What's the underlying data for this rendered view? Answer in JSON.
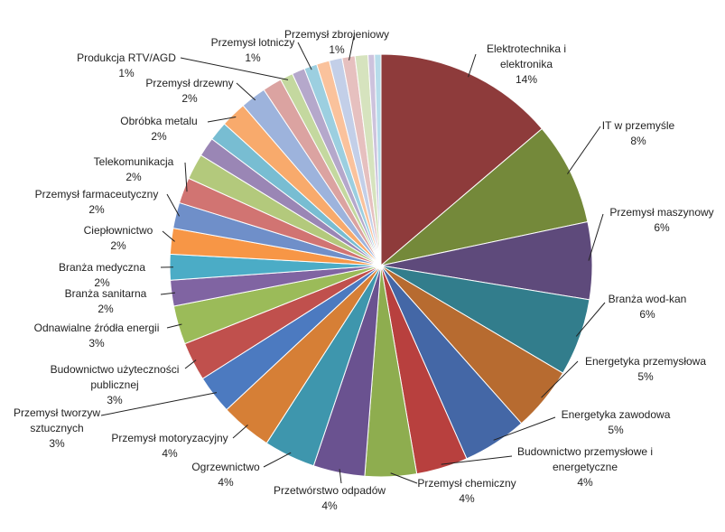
{
  "chart_data": {
    "type": "pie",
    "categories": [
      "Elektrotechnika i elektronika",
      "IT w przemyśle",
      "Przemysł maszynowy",
      "Branża wod-kan",
      "Energetyka przemysłowa",
      "Energetyka zawodowa",
      "Budownictwo przemysłowe i energetyczne",
      "Przemysł chemiczny",
      "Przetwórstwo odpadów",
      "Ogrzewnictwo",
      "Przemysł motoryzacyjny",
      "Przemysł tworzyw sztucznych",
      "Budownictwo użyteczności publicznej",
      "Odnawialne źródła energii",
      "Branża sanitarna",
      "Branża medyczna",
      "Ciepłownictwo",
      "Przemysł farmaceutyczny",
      "Telekomunikacja",
      null,
      null,
      null,
      "Obróbka metalu",
      "Przemysł drzewny",
      null,
      "Produkcja RTV/AGD",
      null,
      "Przemysł lotniczy",
      null,
      null,
      "Przemysł zbrojeniowy",
      null,
      null,
      null
    ],
    "values": [
      14,
      8,
      6,
      6,
      5,
      5,
      4,
      4,
      4,
      4,
      4,
      3,
      3,
      3,
      2,
      2,
      2,
      2,
      2,
      2,
      1.5,
      1.5,
      2,
      2,
      1.5,
      1,
      1,
      1,
      1,
      1,
      1,
      1,
      0.5,
      0.5
    ],
    "value_labels": [
      "14%",
      "8%",
      "6%",
      "6%",
      "5%",
      "5%",
      "4%",
      "4%",
      "4%",
      "4%",
      "4%",
      "3%",
      "3%",
      "3%",
      "2%",
      "2%",
      "2%",
      "2%",
      "2%",
      null,
      null,
      null,
      "2%",
      "2%",
      null,
      "1%",
      null,
      "1%",
      null,
      null,
      "1%",
      null,
      null,
      null
    ],
    "colors": [
      "#8e3b3b",
      "#74893a",
      "#5e4a7b",
      "#327d8c",
      "#b76b30",
      "#4467a6",
      "#b8403e",
      "#8ead4f",
      "#6a5290",
      "#3e96ad",
      "#d67f36",
      "#4c7ac0",
      "#c0504d",
      "#9bbb59",
      "#8064a2",
      "#4bacc6",
      "#f79646",
      "#6f8fc9",
      "#d17472",
      "#b3c97c",
      "#9a86b5",
      "#78bdd2",
      "#f8aa6c",
      "#9db3dc",
      "#dba3a1",
      "#c4d89f",
      "#b5a8cb",
      "#9ccfe0",
      "#fac29c",
      "#c3cfe8",
      "#e6c0bf",
      "#d6e3be",
      "#cdc3dd",
      "#b7dcea"
    ]
  }
}
